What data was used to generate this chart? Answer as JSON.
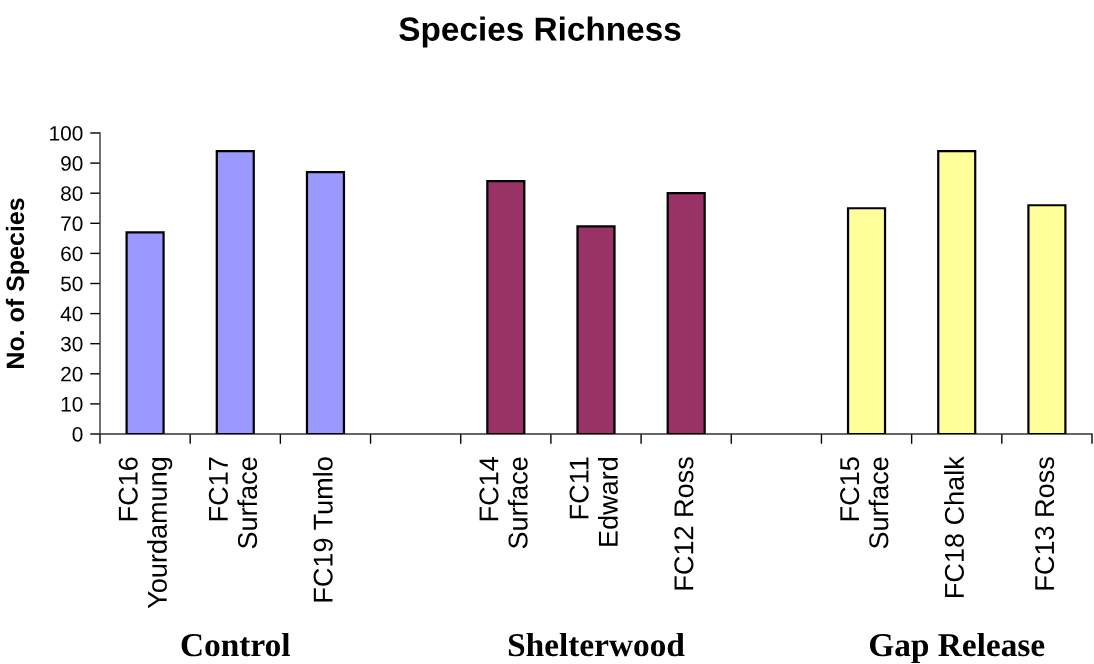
{
  "chart_data": {
    "type": "bar",
    "title": "Species Richness",
    "ylabel": "No. of Species",
    "categories": [
      "FC16\nYourdamung",
      "FC17\nSurface",
      "FC19 Tumlo",
      null,
      "FC14\nSurface",
      "FC11\nEdward",
      "FC12 Ross",
      null,
      "FC15\nSurface",
      "FC18 Chalk",
      "FC13 Ross"
    ],
    "values": [
      67,
      94,
      87,
      null,
      84,
      69,
      80,
      null,
      75,
      94,
      76
    ],
    "colors": [
      "#9999ff",
      "#9999ff",
      "#9999ff",
      null,
      "#993366",
      "#993366",
      "#993366",
      null,
      "#ffff99",
      "#ffff99",
      "#ffff99"
    ],
    "ylim": [
      0,
      100
    ],
    "yticks": [
      0,
      10,
      20,
      30,
      40,
      50,
      60,
      70,
      80,
      90,
      100
    ],
    "annotations": [
      "Control",
      "Shelterwood",
      "Gap Release"
    ]
  }
}
